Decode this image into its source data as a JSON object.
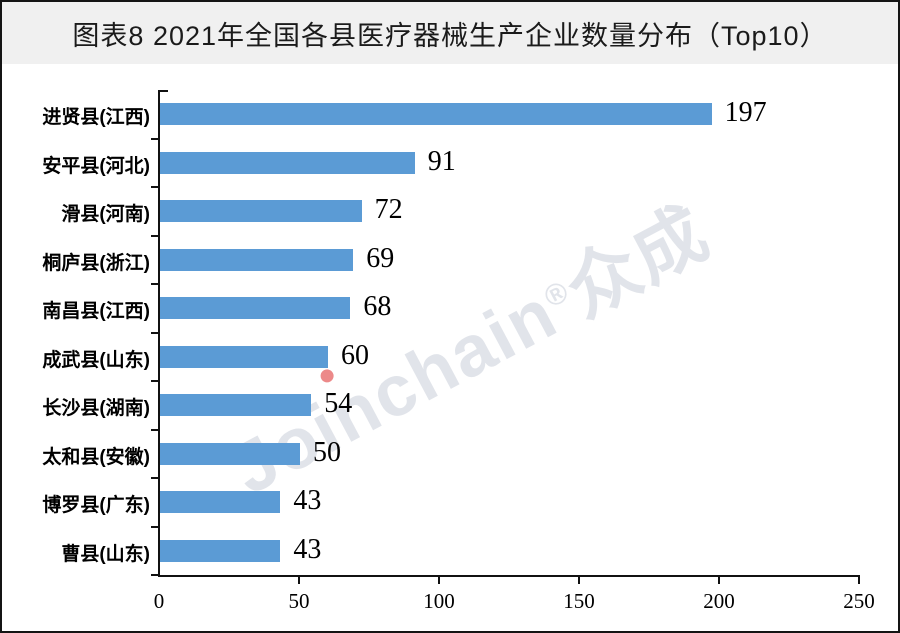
{
  "title": "图表8 2021年全国各县医疗器械生产企业数量分布（Top10）",
  "watermark": {
    "text": "Joinchain",
    "reg": "®",
    "suffix": "众成"
  },
  "colors": {
    "bar": "#5b9bd5",
    "background": "#f0f0f0",
    "plot_background": "#ffffff",
    "axis": "#111111",
    "title_text": "#1b1b1b",
    "watermark_text": "#c8ced9",
    "watermark_dot": "#e24a4a"
  },
  "chart_data": {
    "type": "bar",
    "orientation": "horizontal",
    "title": "图表8 2021年全国各县医疗器械生产企业数量分布（Top10）",
    "categories": [
      "进贤县(江西)",
      "安平县(河北)",
      "滑县(河南)",
      "桐庐县(浙江)",
      "南昌县(江西)",
      "成武县(山东)",
      "长沙县(湖南)",
      "太和县(安徽)",
      "博罗县(广东)",
      "曹县(山东)"
    ],
    "values": [
      197,
      91,
      72,
      69,
      68,
      60,
      54,
      50,
      43,
      43
    ],
    "xlabel": "",
    "ylabel": "",
    "xlim": [
      0,
      250
    ],
    "xticks": [
      0,
      50,
      100,
      150,
      200,
      250
    ],
    "xtick_labels": [
      "0",
      "50",
      "100",
      "150",
      "200",
      "250"
    ],
    "grid": false,
    "legend": "none",
    "data_labels": true
  }
}
